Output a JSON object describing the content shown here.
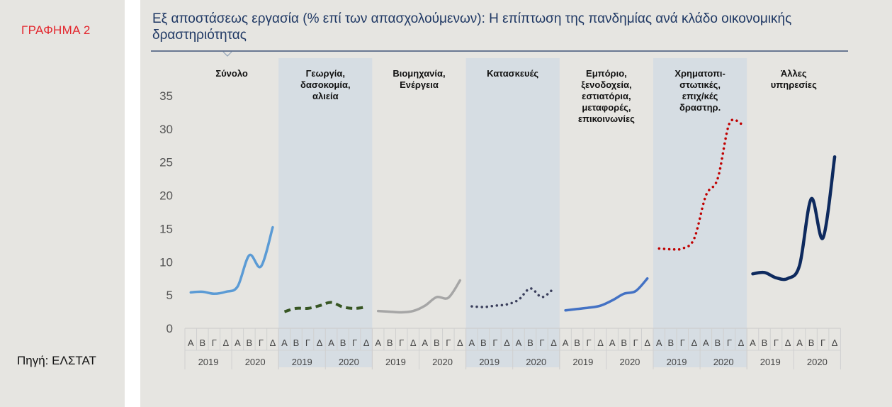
{
  "figure_label": "ΓΡΑΦΗΜΑ 2",
  "source": "Πηγή: ΕΛΣΤΑΤ",
  "title": "Εξ αποστάσεως εργασία (% επί των απασχολούμενων): Η επίπτωση της πανδημίας ανά κλάδο οικονομικής δραστηριότητας",
  "colors": {
    "title": "#1f3864",
    "accent_red": "#e3262d",
    "band": "#d6dde3"
  },
  "chart_data": {
    "type": "line",
    "ylim": [
      0,
      35
    ],
    "yticks": [
      0,
      5,
      10,
      15,
      20,
      25,
      30,
      35
    ],
    "quarter_labels": [
      "Α",
      "Β",
      "Γ",
      "Δ"
    ],
    "years": [
      "2019",
      "2020"
    ],
    "panels": [
      {
        "name": "Σύνολο",
        "title_lines": [
          "Σύνολο"
        ],
        "shaded": false,
        "color": "#5b9bd5",
        "style": "solid",
        "values": [
          5.4,
          5.5,
          5.2,
          5.5,
          6.3,
          11.0,
          9.3,
          15.2
        ]
      },
      {
        "name": "Γεωργία, δασοκομία, αλιεία",
        "title_lines": [
          "Γεωργία,",
          "δασοκομία,",
          "αλιεία"
        ],
        "shaded": true,
        "color": "#375623",
        "style": "dash",
        "values": [
          2.5,
          3.0,
          3.0,
          3.4,
          3.9,
          3.2,
          3.0,
          3.2
        ]
      },
      {
        "name": "Βιομηχανία, Ενέργεια",
        "title_lines": [
          "Βιομηχανία,",
          "Ενέργεια"
        ],
        "shaded": false,
        "color": "#a6a6a6",
        "style": "solid",
        "values": [
          2.6,
          2.5,
          2.4,
          2.6,
          3.4,
          4.7,
          4.6,
          7.2
        ]
      },
      {
        "name": "Κατασκευές",
        "title_lines": [
          "Κατασκευές"
        ],
        "shaded": true,
        "color": "#3b3f5c",
        "style": "dot",
        "values": [
          3.3,
          3.2,
          3.4,
          3.6,
          4.3,
          6.0,
          4.7,
          6.0
        ]
      },
      {
        "name": "Εμπόριο, ξενοδοχεία, εστιατόρια, μεταφορές, επικοινωνίες",
        "title_lines": [
          "Εμπόριο,",
          "ξενοδοχεία,",
          "εστιατόρια,",
          "μεταφορές,",
          "επικοινωνίες"
        ],
        "shaded": false,
        "color": "#4472c4",
        "style": "solid",
        "values": [
          2.7,
          2.9,
          3.1,
          3.4,
          4.2,
          5.2,
          5.6,
          7.5
        ]
      },
      {
        "name": "Χρηματοπιστωτικές, επιχ/κές δραστηρ.",
        "title_lines": [
          "Χρηματοπι-",
          "στωτικές,",
          "επιχ/κές",
          "δραστηρ."
        ],
        "shaded": true,
        "color": "#c00000",
        "style": "dot",
        "values": [
          12.0,
          11.9,
          12.0,
          13.5,
          20.0,
          22.5,
          30.8,
          30.8
        ]
      },
      {
        "name": "Άλλες υπηρεσίες",
        "title_lines": [
          "Άλλες",
          "υπηρεσίες"
        ],
        "shaded": false,
        "color": "#0e2a5e",
        "style": "solid",
        "values": [
          8.2,
          8.4,
          7.6,
          7.5,
          9.5,
          19.5,
          13.6,
          25.8
        ]
      }
    ]
  }
}
